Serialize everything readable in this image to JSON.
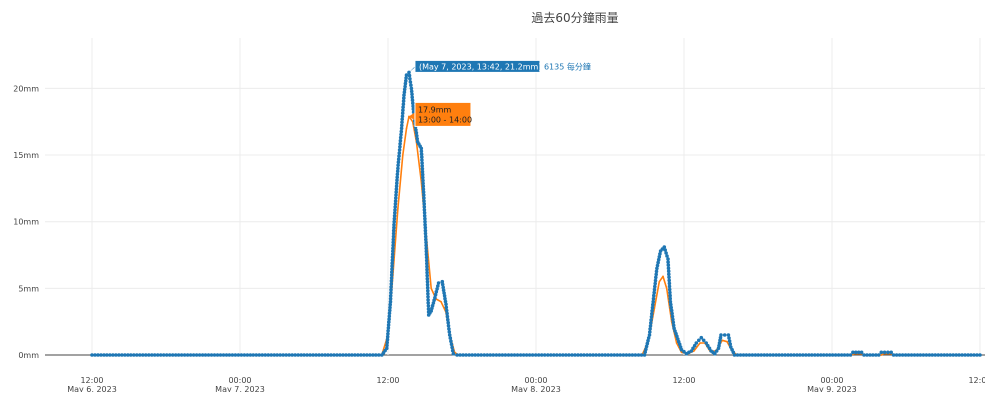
{
  "chart_data": {
    "type": "line",
    "title": "過去60分鐘雨量",
    "y_unit": "mm",
    "ylim": [
      0,
      22
    ],
    "y_ticks": [
      {
        "value": 0,
        "label": "0mm"
      },
      {
        "value": 5,
        "label": "5mm"
      },
      {
        "value": 10,
        "label": "10mm"
      },
      {
        "value": 15,
        "label": "15mm"
      },
      {
        "value": 20,
        "label": "20mm"
      }
    ],
    "x_range_hours": [
      -2,
      60
    ],
    "x_ticks": [
      {
        "hour": 0,
        "time": "12:00",
        "date": "May 6, 2023"
      },
      {
        "hour": 12,
        "time": "00:00",
        "date": "May 7, 2023"
      },
      {
        "hour": 24,
        "time": "12:00",
        "date": ""
      },
      {
        "hour": 36,
        "time": "00:00",
        "date": "May 8, 2023"
      },
      {
        "hour": 48,
        "time": "12:00",
        "date": ""
      },
      {
        "hour": 60,
        "time": "00:00",
        "date": "May 9, 2023"
      },
      {
        "hour": 72,
        "time": "12:00",
        "date": ""
      }
    ],
    "grid": true,
    "series": [
      {
        "style": "markers",
        "color": "#1f77b4",
        "points": [
          [
            0,
            0
          ],
          [
            23.5,
            0
          ],
          [
            23.9,
            0.5
          ],
          [
            24.2,
            4
          ],
          [
            24.5,
            10
          ],
          [
            24.8,
            14
          ],
          [
            25.1,
            17
          ],
          [
            25.3,
            19.5
          ],
          [
            25.5,
            21
          ],
          [
            25.7,
            21.2
          ],
          [
            25.9,
            20
          ],
          [
            26.1,
            18
          ],
          [
            26.4,
            16
          ],
          [
            26.7,
            15.5
          ],
          [
            26.9,
            12
          ],
          [
            27.1,
            8
          ],
          [
            27.3,
            3
          ],
          [
            27.5,
            3.3
          ],
          [
            27.8,
            4.3
          ],
          [
            28.1,
            5.4
          ],
          [
            28.4,
            5.5
          ],
          [
            28.7,
            3.8
          ],
          [
            29.0,
            1.5
          ],
          [
            29.3,
            0.1
          ],
          [
            29.6,
            0
          ],
          [
            44.8,
            0
          ],
          [
            45.2,
            1.5
          ],
          [
            45.5,
            4
          ],
          [
            45.8,
            6.5
          ],
          [
            46.1,
            7.8
          ],
          [
            46.4,
            8.1
          ],
          [
            46.7,
            7.2
          ],
          [
            46.9,
            4
          ],
          [
            47.2,
            2
          ],
          [
            47.5,
            1.2
          ],
          [
            47.8,
            0.4
          ],
          [
            48.2,
            0.1
          ],
          [
            48.6,
            0.3
          ],
          [
            49.0,
            0.9
          ],
          [
            49.4,
            1.3
          ],
          [
            49.8,
            0.9
          ],
          [
            50.2,
            0.3
          ],
          [
            50.5,
            0.1
          ],
          [
            50.8,
            0.5
          ],
          [
            51.0,
            1.5
          ],
          [
            51.6,
            1.5
          ],
          [
            51.8,
            0.6
          ],
          [
            52.1,
            0
          ],
          [
            61.5,
            0
          ],
          [
            61.7,
            0.2
          ],
          [
            62.4,
            0.2
          ],
          [
            62.6,
            0
          ],
          [
            63.8,
            0
          ],
          [
            64.0,
            0.2
          ],
          [
            64.8,
            0.2
          ],
          [
            65.0,
            0
          ],
          [
            72,
            0
          ]
        ]
      },
      {
        "style": "line",
        "color": "#ff7f0e",
        "points": [
          [
            0,
            0
          ],
          [
            23.5,
            0
          ],
          [
            24.0,
            1.5
          ],
          [
            24.4,
            6
          ],
          [
            24.8,
            11
          ],
          [
            25.2,
            15
          ],
          [
            25.5,
            17
          ],
          [
            25.7,
            17.9
          ],
          [
            26.0,
            17.5
          ],
          [
            26.3,
            16
          ],
          [
            26.7,
            13
          ],
          [
            27.1,
            9
          ],
          [
            27.5,
            5
          ],
          [
            27.9,
            4.2
          ],
          [
            28.3,
            4
          ],
          [
            28.7,
            3.2
          ],
          [
            29.1,
            1.2
          ],
          [
            29.4,
            0.2
          ],
          [
            29.7,
            0
          ],
          [
            44.6,
            0
          ],
          [
            45.1,
            1
          ],
          [
            45.6,
            3.5
          ],
          [
            46.0,
            5.5
          ],
          [
            46.3,
            5.9
          ],
          [
            46.6,
            5
          ],
          [
            47.0,
            2.5
          ],
          [
            47.4,
            0.9
          ],
          [
            47.8,
            0.2
          ],
          [
            48.3,
            0.1
          ],
          [
            48.8,
            0.3
          ],
          [
            49.3,
            0.9
          ],
          [
            49.7,
            0.9
          ],
          [
            50.1,
            0.3
          ],
          [
            50.6,
            0.3
          ],
          [
            51.1,
            1.1
          ],
          [
            51.5,
            1
          ],
          [
            51.9,
            0.3
          ],
          [
            52.3,
            0
          ],
          [
            61.6,
            0
          ],
          [
            61.8,
            0.1
          ],
          [
            62.4,
            0.1
          ],
          [
            62.6,
            0
          ],
          [
            64.0,
            0
          ],
          [
            64.2,
            0.1
          ],
          [
            64.8,
            0.1
          ],
          [
            65.0,
            0
          ],
          [
            72,
            0
          ]
        ]
      }
    ],
    "annotations": [
      {
        "series": 0,
        "x": 25.7,
        "y": 21.2,
        "label": "(May 7, 2023, 13:42, 21.2mm)",
        "series_name": "6135 每分鐘",
        "color": "#1f77b4"
      },
      {
        "series": 1,
        "x": 25.7,
        "y": 17.9,
        "lines": [
          "17.9mm",
          "13:00 - 14:00"
        ],
        "color": "#ff7f0e"
      }
    ]
  }
}
